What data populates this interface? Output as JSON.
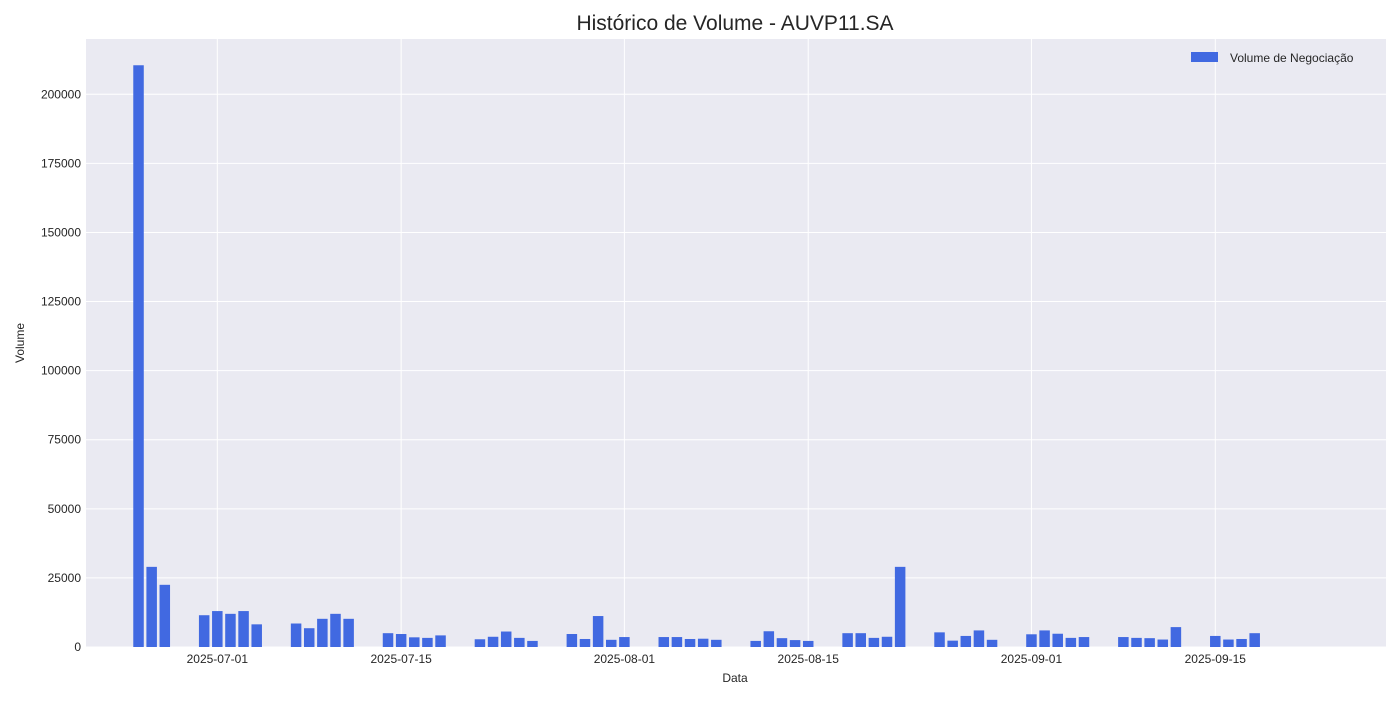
{
  "chart_data": {
    "type": "bar",
    "title": "Histórico de Volume - AUVP11.SA",
    "xlabel": "Data",
    "ylabel": "Volume",
    "legend": {
      "placement": "top-right",
      "entries": [
        "Volume de Negociação"
      ]
    },
    "grid": true,
    "colors": {
      "bar": "#4169e1",
      "plot_bg": "#eaeaf2",
      "grid": "#ffffff",
      "text": "#262626"
    },
    "xlim": [
      "2025-06-21",
      "2025-09-28"
    ],
    "ylim": [
      0,
      220000
    ],
    "yticks": [
      0,
      25000,
      50000,
      75000,
      100000,
      125000,
      150000,
      175000,
      200000
    ],
    "xticks": [
      "2025-07-01",
      "2025-07-15",
      "2025-08-01",
      "2025-08-15",
      "2025-09-01",
      "2025-09-15"
    ],
    "series": [
      {
        "name": "Volume de Negociação",
        "x": [
          "2025-06-25",
          "2025-06-26",
          "2025-06-27",
          "2025-06-30",
          "2025-07-01",
          "2025-07-02",
          "2025-07-03",
          "2025-07-04",
          "2025-07-07",
          "2025-07-08",
          "2025-07-09",
          "2025-07-10",
          "2025-07-11",
          "2025-07-14",
          "2025-07-15",
          "2025-07-16",
          "2025-07-17",
          "2025-07-18",
          "2025-07-21",
          "2025-07-22",
          "2025-07-23",
          "2025-07-24",
          "2025-07-25",
          "2025-07-28",
          "2025-07-29",
          "2025-07-30",
          "2025-07-31",
          "2025-08-01",
          "2025-08-04",
          "2025-08-05",
          "2025-08-06",
          "2025-08-07",
          "2025-08-08",
          "2025-08-11",
          "2025-08-12",
          "2025-08-13",
          "2025-08-14",
          "2025-08-15",
          "2025-08-18",
          "2025-08-19",
          "2025-08-20",
          "2025-08-21",
          "2025-08-22",
          "2025-08-25",
          "2025-08-26",
          "2025-08-27",
          "2025-08-28",
          "2025-08-29",
          "2025-09-01",
          "2025-09-02",
          "2025-09-03",
          "2025-09-04",
          "2025-09-05",
          "2025-09-08",
          "2025-09-09",
          "2025-09-10",
          "2025-09-11",
          "2025-09-12",
          "2025-09-15",
          "2025-09-16",
          "2025-09-17",
          "2025-09-18"
        ],
        "values": [
          210500,
          29000,
          22500,
          11500,
          13000,
          12000,
          13000,
          8200,
          8500,
          6800,
          10200,
          12000,
          10200,
          5000,
          4700,
          3500,
          3300,
          4200,
          2800,
          3700,
          5600,
          3300,
          2200,
          4700,
          2900,
          11200,
          2600,
          3600,
          3600,
          3600,
          2900,
          3000,
          2600,
          2200,
          5700,
          3200,
          2500,
          2200,
          5000,
          5000,
          3300,
          3700,
          29000,
          5300,
          2300,
          4000,
          6000,
          2600,
          4600,
          6000,
          4800,
          3300,
          3600,
          3600,
          3300,
          3200,
          2700,
          7200,
          4000,
          2700,
          2900,
          5000
        ]
      }
    ]
  }
}
